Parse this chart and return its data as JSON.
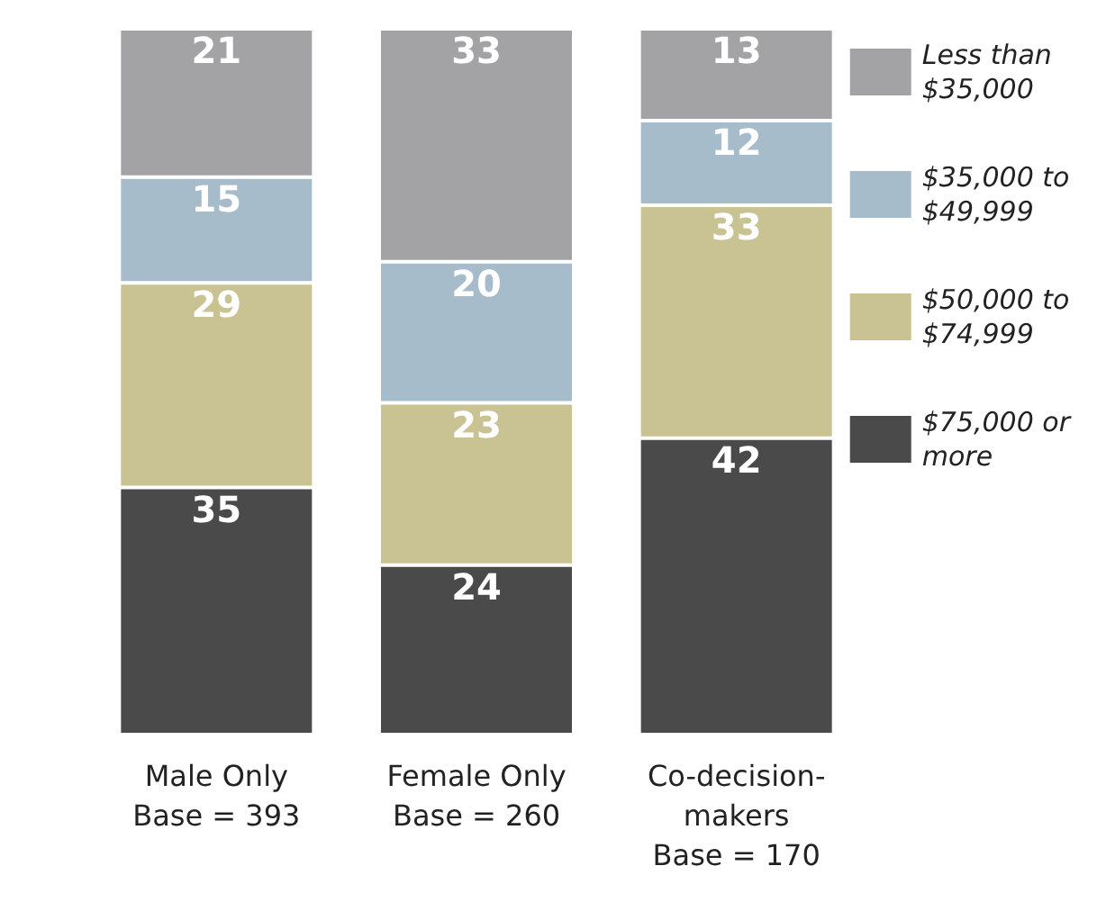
{
  "chart_data": {
    "type": "bar",
    "stacked": true,
    "data_labels": true,
    "legend": "right",
    "categories": [
      "Male Only\nBase = 393",
      "Female Only\nBase = 260",
      "Co-decision-\nmakers\nBase = 170"
    ],
    "series": [
      {
        "name": "$75,000 or more",
        "color": "#4a4a4a",
        "values": [
          35,
          24,
          42
        ]
      },
      {
        "name": "$50,000 to $74,999",
        "color": "#c9c292",
        "values": [
          29,
          23,
          33
        ]
      },
      {
        "name": "$35,000 to $49,999",
        "color": "#a6bccb",
        "values": [
          15,
          20,
          12
        ]
      },
      {
        "name": "Less than $35,000",
        "color": "#a3a3a6",
        "values": [
          21,
          33,
          13
        ]
      }
    ]
  }
}
